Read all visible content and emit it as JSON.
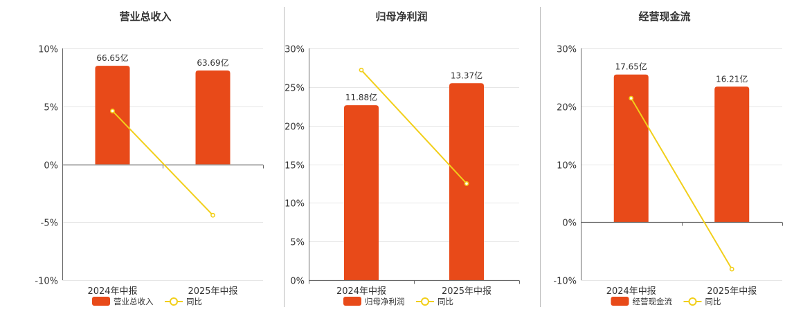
{
  "colors": {
    "bar": "#e84a19",
    "line": "#f2cf1a",
    "grid": "#e6e6e6",
    "axis": "#666666",
    "divider": "#bbbbbb",
    "text": "#333333"
  },
  "legend": {
    "yoy_label": "同比"
  },
  "chart_data": [
    {
      "type": "bar",
      "title": "营业总收入",
      "categories": [
        "2024年中报",
        "2025年中报"
      ],
      "ylim": [
        -10,
        10
      ],
      "yticks": [
        -10,
        -5,
        0,
        5,
        10
      ],
      "tick_labels": [
        "-10%",
        "-5%",
        "0%",
        "5%",
        "10%"
      ],
      "series": [
        {
          "name": "营业总收入",
          "bar_fraction": [
            0.85,
            0.81
          ],
          "labels": [
            "66.65亿",
            "63.69亿"
          ]
        },
        {
          "name": "同比",
          "values": [
            4.6,
            -4.4
          ]
        }
      ],
      "grid": true,
      "legend": "bottom"
    },
    {
      "type": "bar",
      "title": "归母净利润",
      "categories": [
        "2024年中报",
        "2025年中报"
      ],
      "ylim": [
        0,
        30
      ],
      "yticks": [
        0,
        5,
        10,
        15,
        20,
        25,
        30
      ],
      "tick_labels": [
        "0%",
        "5%",
        "10%",
        "15%",
        "20%",
        "25%",
        "30%"
      ],
      "series": [
        {
          "name": "归母净利润",
          "bar_fraction": [
            0.755,
            0.85
          ],
          "labels": [
            "11.88亿",
            "13.37亿"
          ]
        },
        {
          "name": "同比",
          "values": [
            27.2,
            12.5
          ]
        }
      ],
      "grid": true,
      "legend": "bottom"
    },
    {
      "type": "bar",
      "title": "经营现金流",
      "categories": [
        "2024年中报",
        "2025年中报"
      ],
      "ylim": [
        -10,
        30
      ],
      "yticks": [
        -10,
        0,
        10,
        20,
        30
      ],
      "tick_labels": [
        "-10%",
        "0%",
        "10%",
        "20%",
        "30%"
      ],
      "series": [
        {
          "name": "经营现金流",
          "bar_fraction": [
            0.85,
            0.78
          ],
          "labels": [
            "17.65亿",
            "16.21亿"
          ]
        },
        {
          "name": "同比",
          "values": [
            21.4,
            -8.1
          ]
        }
      ],
      "grid": true,
      "legend": "bottom"
    }
  ]
}
